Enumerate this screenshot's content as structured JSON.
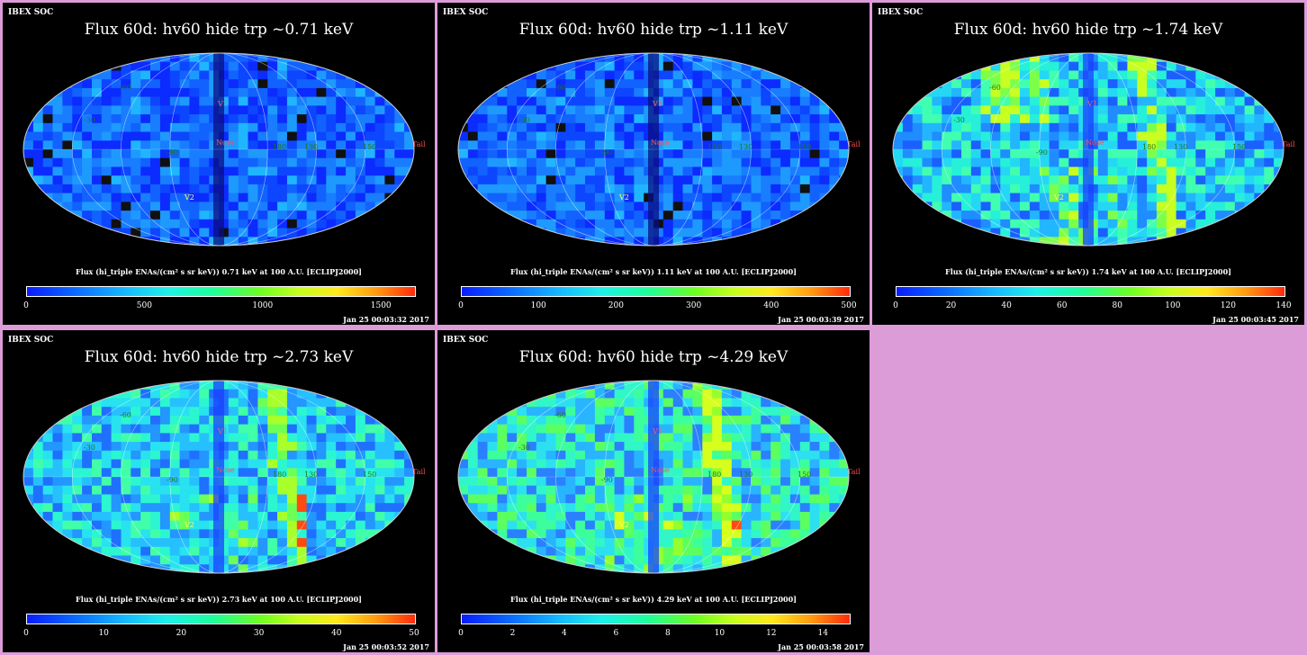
{
  "header": {
    "soc_label": "IBEX SOC"
  },
  "map_labels": {
    "nose": "Nose",
    "tail": "Tail",
    "v1": "V1",
    "v2": "V2",
    "lon_labels": [
      "-90",
      "-60",
      "-30",
      "30",
      "60",
      "90",
      "130",
      "150",
      "180"
    ]
  },
  "panels": [
    {
      "title": "Flux   60d: hv60 hide trp ~0.71 keV",
      "caption": "Flux (hi_triple ENAs/(cm² s sr keV))  0.71 keV at 100 A.U. [ECLIPJ2000]",
      "timestamp": "Jan 25 00:03:32 2017",
      "ticks": [
        "0",
        "500",
        "1000",
        "1500"
      ],
      "tick_values": [
        0,
        500,
        1000,
        1500
      ],
      "range": [
        0,
        1640
      ],
      "style": "blue"
    },
    {
      "title": "Flux   60d: hv60 hide trp ~1.11 keV",
      "caption": "Flux (hi_triple ENAs/(cm² s sr keV))  1.11 keV at 100 A.U. [ECLIPJ2000]",
      "timestamp": "Jan 25 00:03:39 2017",
      "ticks": [
        "0",
        "100",
        "200",
        "300",
        "400",
        "500"
      ],
      "tick_values": [
        0,
        100,
        200,
        300,
        400,
        500
      ],
      "range": [
        0,
        500
      ],
      "style": "blue"
    },
    {
      "title": "Flux   60d: hv60 hide trp ~1.74 keV",
      "caption": "Flux (hi_triple ENAs/(cm² s sr keV))  1.74 keV at 100 A.U. [ECLIPJ2000]",
      "timestamp": "Jan 25 00:03:45 2017",
      "ticks": [
        "0",
        "20",
        "40",
        "60",
        "80",
        "100",
        "120",
        "140"
      ],
      "tick_values": [
        0,
        20,
        40,
        60,
        80,
        100,
        120,
        140
      ],
      "range": [
        0,
        140
      ],
      "style": "cyan"
    },
    {
      "title": "Flux   60d: hv60 hide trp ~2.73 keV",
      "caption": "Flux (hi_triple ENAs/(cm² s sr keV))  2.73 keV at 100 A.U. [ECLIPJ2000]",
      "timestamp": "Jan 25 00:03:52 2017",
      "ticks": [
        "0",
        "10",
        "20",
        "30",
        "40",
        "50"
      ],
      "tick_values": [
        0,
        10,
        20,
        30,
        40,
        50
      ],
      "range": [
        0,
        50
      ],
      "style": "cyangreen"
    },
    {
      "title": "Flux   60d: hv60 hide trp ~4.29 keV",
      "caption": "Flux (hi_triple ENAs/(cm² s sr keV))  4.29 keV at 100 A.U. [ECLIPJ2000]",
      "timestamp": "Jan 25 00:03:58 2017",
      "ticks": [
        "0",
        "2",
        "4",
        "6",
        "8",
        "10",
        "12",
        "14"
      ],
      "tick_values": [
        0,
        2,
        4,
        6,
        8,
        10,
        12,
        14
      ],
      "range": [
        0,
        15
      ],
      "style": "green"
    }
  ],
  "chart_data": {
    "type": "heatmap",
    "projection": "mollweide all-sky",
    "colormap": [
      "#0a1cff",
      "#16b8ff",
      "#1ff0e8",
      "#1fff9a",
      "#6cff22",
      "#ffe81e",
      "#ff9a10",
      "#ff2a0c"
    ],
    "panel_count": 5,
    "energies_keV": [
      0.71,
      1.11,
      1.74,
      2.73,
      4.29
    ],
    "colorbar_ranges": [
      [
        0,
        1640
      ],
      [
        0,
        500
      ],
      [
        0,
        140
      ],
      [
        0,
        50
      ],
      [
        0,
        15
      ]
    ]
  }
}
